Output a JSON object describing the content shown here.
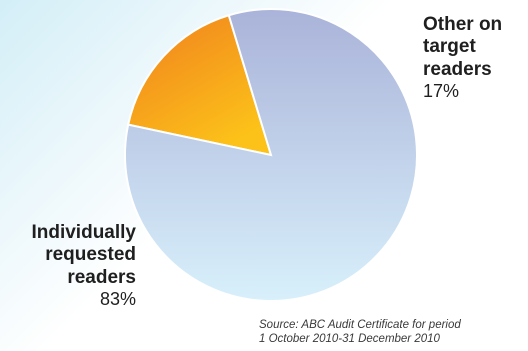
{
  "chart_data": {
    "type": "pie",
    "slices": [
      {
        "label": "Other on\ntarget\nreaders",
        "value": 17,
        "value_label": "17%",
        "color": "#f7a51f"
      },
      {
        "label": "Individually\nrequested\nreaders",
        "value": 83,
        "value_label": "83%",
        "color": "#c4d9ee"
      }
    ],
    "source": "Source: ABC Audit Certificate for period\n1 October 2010-31 December 2010"
  }
}
